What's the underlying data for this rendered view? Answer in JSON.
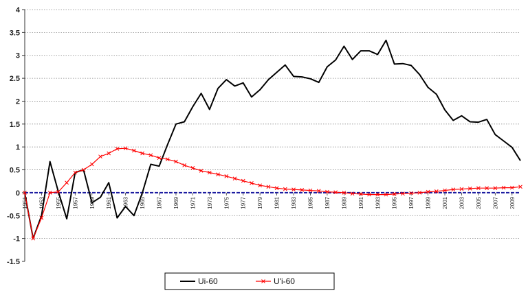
{
  "chart_data": {
    "type": "line",
    "title": "",
    "xlabel": "",
    "ylabel": "",
    "ylim": [
      -1.5,
      4
    ],
    "yticks": [
      -1.5,
      -1,
      -0.5,
      0,
      0.5,
      1,
      1.5,
      2,
      2.5,
      3,
      3.5,
      4
    ],
    "ytick_labels": [
      "-1.5",
      "-1",
      "-0.5",
      "0",
      "0.5",
      "1",
      "1.5",
      "2",
      "2.5",
      "3",
      "3.5",
      "4"
    ],
    "xlim": [
      1951,
      2010
    ],
    "xtick_labels": [
      "1951",
      "1953",
      "1955",
      "1957",
      "1959",
      "1961",
      "1963",
      "1965",
      "1967",
      "1969",
      "1971",
      "1973",
      "1975",
      "1977",
      "1979",
      "1981",
      "1983",
      "1985",
      "1987",
      "1989",
      "1991",
      "1993",
      "1995",
      "1997",
      "1999",
      "2001",
      "2003",
      "2005",
      "2007",
      "2009"
    ],
    "grid": "horizontal-dotted",
    "legend_position": "bottom",
    "x": [
      1951,
      1952,
      1953,
      1954,
      1955,
      1956,
      1957,
      1958,
      1959,
      1960,
      1961,
      1962,
      1963,
      1964,
      1965,
      1966,
      1967,
      1968,
      1969,
      1970,
      1971,
      1972,
      1973,
      1974,
      1975,
      1976,
      1977,
      1978,
      1979,
      1980,
      1981,
      1982,
      1983,
      1984,
      1985,
      1986,
      1987,
      1988,
      1989,
      1990,
      1991,
      1992,
      1993,
      1994,
      1995,
      1996,
      1997,
      1998,
      1999,
      2000,
      2001,
      2002,
      2003,
      2004,
      2005,
      2006,
      2007,
      2008,
      2009,
      2010
    ],
    "series": [
      {
        "name": "Ui-60",
        "color": "#000000",
        "marker": "none",
        "values": [
          0.0,
          -1.0,
          -0.5,
          0.68,
          0.02,
          -0.57,
          0.44,
          0.5,
          -0.22,
          -0.1,
          0.22,
          -0.55,
          -0.3,
          -0.5,
          0.0,
          0.62,
          0.58,
          1.05,
          1.5,
          1.55,
          1.88,
          2.17,
          1.82,
          2.28,
          2.47,
          2.33,
          2.4,
          2.09,
          2.25,
          2.47,
          2.63,
          2.79,
          2.54,
          2.53,
          2.49,
          2.41,
          2.75,
          2.9,
          3.2,
          2.91,
          3.1,
          3.1,
          3.02,
          3.33,
          2.81,
          2.82,
          2.78,
          2.58,
          2.3,
          2.15,
          1.81,
          1.58,
          1.68,
          1.55,
          1.54,
          1.6,
          1.27,
          1.13,
          0.99,
          0.7
        ]
      },
      {
        "name": "U'i-60",
        "color": "#ff0000",
        "marker": "x",
        "values": [
          0.0,
          -1.0,
          -0.55,
          0.0,
          0.02,
          0.22,
          0.44,
          0.5,
          0.62,
          0.79,
          0.86,
          0.96,
          0.97,
          0.92,
          0.86,
          0.82,
          0.76,
          0.73,
          0.68,
          0.6,
          0.54,
          0.48,
          0.44,
          0.4,
          0.36,
          0.31,
          0.26,
          0.21,
          0.16,
          0.13,
          0.1,
          0.08,
          0.07,
          0.06,
          0.05,
          0.04,
          0.02,
          0.01,
          0.0,
          -0.02,
          -0.03,
          -0.04,
          -0.04,
          -0.04,
          -0.03,
          -0.02,
          -0.01,
          0.0,
          0.02,
          0.03,
          0.05,
          0.07,
          0.08,
          0.09,
          0.1,
          0.1,
          0.1,
          0.11,
          0.11,
          0.13
        ]
      }
    ]
  }
}
